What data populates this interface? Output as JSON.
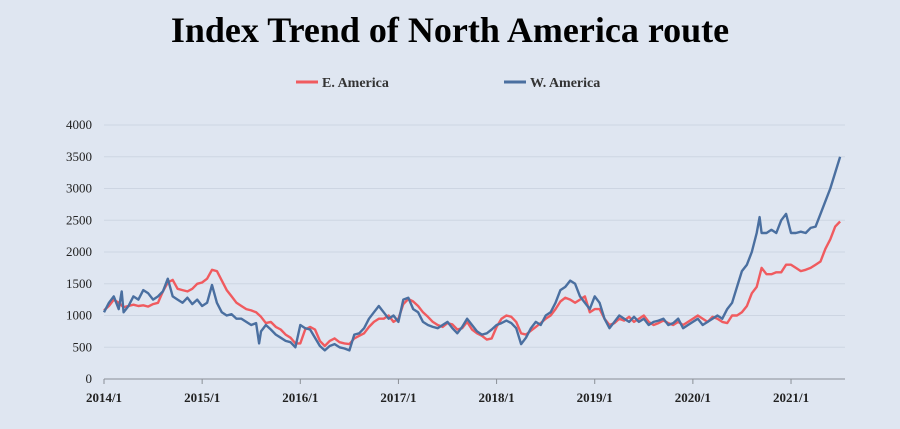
{
  "chart_data": {
    "type": "line",
    "title": "Index Trend of North America route",
    "xlabel": "",
    "ylabel": "",
    "ylim": [
      0,
      4000
    ],
    "yticks": [
      0,
      500,
      1000,
      1500,
      2000,
      2500,
      3000,
      3500,
      4000
    ],
    "xticks": [
      "2014/1",
      "2015/1",
      "2016/1",
      "2017/1",
      "2018/1",
      "2019/1",
      "2020/1",
      "2021/1"
    ],
    "xlim": [
      2014.0,
      2021.55
    ],
    "grid": true,
    "legend_position": "top-center",
    "series": [
      {
        "name": "E. America",
        "color": "#f05b5f",
        "points": [
          [
            2014.0,
            1080
          ],
          [
            2014.05,
            1150
          ],
          [
            2014.1,
            1250
          ],
          [
            2014.15,
            1200
          ],
          [
            2014.2,
            1130
          ],
          [
            2014.25,
            1150
          ],
          [
            2014.3,
            1170
          ],
          [
            2014.35,
            1150
          ],
          [
            2014.4,
            1160
          ],
          [
            2014.45,
            1140
          ],
          [
            2014.5,
            1180
          ],
          [
            2014.55,
            1200
          ],
          [
            2014.6,
            1380
          ],
          [
            2014.65,
            1520
          ],
          [
            2014.7,
            1560
          ],
          [
            2014.75,
            1420
          ],
          [
            2014.8,
            1400
          ],
          [
            2014.85,
            1380
          ],
          [
            2014.9,
            1420
          ],
          [
            2014.95,
            1500
          ],
          [
            2015.0,
            1520
          ],
          [
            2015.05,
            1580
          ],
          [
            2015.1,
            1720
          ],
          [
            2015.15,
            1700
          ],
          [
            2015.2,
            1550
          ],
          [
            2015.25,
            1400
          ],
          [
            2015.3,
            1300
          ],
          [
            2015.35,
            1200
          ],
          [
            2015.4,
            1150
          ],
          [
            2015.45,
            1100
          ],
          [
            2015.5,
            1080
          ],
          [
            2015.55,
            1050
          ],
          [
            2015.6,
            980
          ],
          [
            2015.65,
            880
          ],
          [
            2015.7,
            900
          ],
          [
            2015.75,
            820
          ],
          [
            2015.8,
            780
          ],
          [
            2015.85,
            700
          ],
          [
            2015.9,
            650
          ],
          [
            2015.95,
            560
          ],
          [
            2016.0,
            560
          ],
          [
            2016.05,
            780
          ],
          [
            2016.1,
            820
          ],
          [
            2016.15,
            780
          ],
          [
            2016.2,
            600
          ],
          [
            2016.25,
            520
          ],
          [
            2016.3,
            600
          ],
          [
            2016.35,
            640
          ],
          [
            2016.4,
            580
          ],
          [
            2016.45,
            560
          ],
          [
            2016.5,
            550
          ],
          [
            2016.55,
            640
          ],
          [
            2016.6,
            680
          ],
          [
            2016.65,
            720
          ],
          [
            2016.7,
            820
          ],
          [
            2016.75,
            900
          ],
          [
            2016.8,
            950
          ],
          [
            2016.85,
            950
          ],
          [
            2016.9,
            1000
          ],
          [
            2016.95,
            900
          ],
          [
            2017.0,
            950
          ],
          [
            2017.05,
            1180
          ],
          [
            2017.1,
            1260
          ],
          [
            2017.15,
            1220
          ],
          [
            2017.2,
            1150
          ],
          [
            2017.25,
            1050
          ],
          [
            2017.3,
            980
          ],
          [
            2017.35,
            900
          ],
          [
            2017.4,
            850
          ],
          [
            2017.45,
            820
          ],
          [
            2017.5,
            880
          ],
          [
            2017.55,
            860
          ],
          [
            2017.6,
            780
          ],
          [
            2017.65,
            800
          ],
          [
            2017.7,
            900
          ],
          [
            2017.75,
            780
          ],
          [
            2017.8,
            720
          ],
          [
            2017.85,
            680
          ],
          [
            2017.9,
            620
          ],
          [
            2017.95,
            640
          ],
          [
            2018.0,
            820
          ],
          [
            2018.05,
            950
          ],
          [
            2018.1,
            1000
          ],
          [
            2018.15,
            980
          ],
          [
            2018.2,
            900
          ],
          [
            2018.25,
            720
          ],
          [
            2018.3,
            700
          ],
          [
            2018.35,
            760
          ],
          [
            2018.4,
            820
          ],
          [
            2018.45,
            880
          ],
          [
            2018.5,
            950
          ],
          [
            2018.55,
            1000
          ],
          [
            2018.6,
            1100
          ],
          [
            2018.65,
            1220
          ],
          [
            2018.7,
            1280
          ],
          [
            2018.75,
            1250
          ],
          [
            2018.8,
            1200
          ],
          [
            2018.85,
            1250
          ],
          [
            2018.9,
            1300
          ],
          [
            2018.95,
            1050
          ],
          [
            2019.0,
            1100
          ],
          [
            2019.05,
            1100
          ],
          [
            2019.1,
            950
          ],
          [
            2019.15,
            850
          ],
          [
            2019.2,
            880
          ],
          [
            2019.25,
            950
          ],
          [
            2019.3,
            920
          ],
          [
            2019.35,
            980
          ],
          [
            2019.4,
            900
          ],
          [
            2019.45,
            950
          ],
          [
            2019.5,
            1000
          ],
          [
            2019.55,
            900
          ],
          [
            2019.6,
            850
          ],
          [
            2019.65,
            880
          ],
          [
            2019.7,
            920
          ],
          [
            2019.75,
            880
          ],
          [
            2019.8,
            850
          ],
          [
            2019.85,
            900
          ],
          [
            2019.9,
            850
          ],
          [
            2019.95,
            900
          ],
          [
            2020.0,
            950
          ],
          [
            2020.05,
            1000
          ],
          [
            2020.1,
            950
          ],
          [
            2020.15,
            900
          ],
          [
            2020.2,
            980
          ],
          [
            2020.25,
            950
          ],
          [
            2020.3,
            900
          ],
          [
            2020.35,
            880
          ],
          [
            2020.4,
            1000
          ],
          [
            2020.45,
            1000
          ],
          [
            2020.5,
            1050
          ],
          [
            2020.55,
            1150
          ],
          [
            2020.6,
            1350
          ],
          [
            2020.65,
            1450
          ],
          [
            2020.7,
            1750
          ],
          [
            2020.75,
            1650
          ],
          [
            2020.8,
            1650
          ],
          [
            2020.85,
            1680
          ],
          [
            2020.9,
            1680
          ],
          [
            2020.95,
            1800
          ],
          [
            2021.0,
            1800
          ],
          [
            2021.05,
            1750
          ],
          [
            2021.1,
            1700
          ],
          [
            2021.15,
            1720
          ],
          [
            2021.2,
            1750
          ],
          [
            2021.25,
            1800
          ],
          [
            2021.3,
            1850
          ],
          [
            2021.35,
            2050
          ],
          [
            2021.4,
            2200
          ],
          [
            2021.45,
            2400
          ],
          [
            2021.5,
            2480
          ]
        ]
      },
      {
        "name": "W. America",
        "color": "#4a6fa0",
        "points": [
          [
            2014.0,
            1050
          ],
          [
            2014.05,
            1200
          ],
          [
            2014.1,
            1300
          ],
          [
            2014.15,
            1100
          ],
          [
            2014.18,
            1380
          ],
          [
            2014.2,
            1050
          ],
          [
            2014.25,
            1150
          ],
          [
            2014.3,
            1300
          ],
          [
            2014.35,
            1250
          ],
          [
            2014.4,
            1400
          ],
          [
            2014.45,
            1350
          ],
          [
            2014.5,
            1250
          ],
          [
            2014.55,
            1300
          ],
          [
            2014.6,
            1380
          ],
          [
            2014.65,
            1580
          ],
          [
            2014.7,
            1300
          ],
          [
            2014.75,
            1250
          ],
          [
            2014.8,
            1200
          ],
          [
            2014.85,
            1280
          ],
          [
            2014.9,
            1180
          ],
          [
            2014.95,
            1250
          ],
          [
            2015.0,
            1150
          ],
          [
            2015.05,
            1200
          ],
          [
            2015.1,
            1480
          ],
          [
            2015.15,
            1200
          ],
          [
            2015.2,
            1050
          ],
          [
            2015.25,
            1000
          ],
          [
            2015.3,
            1020
          ],
          [
            2015.35,
            950
          ],
          [
            2015.4,
            950
          ],
          [
            2015.45,
            900
          ],
          [
            2015.5,
            850
          ],
          [
            2015.55,
            880
          ],
          [
            2015.58,
            560
          ],
          [
            2015.6,
            750
          ],
          [
            2015.65,
            850
          ],
          [
            2015.7,
            780
          ],
          [
            2015.75,
            700
          ],
          [
            2015.8,
            650
          ],
          [
            2015.85,
            600
          ],
          [
            2015.9,
            580
          ],
          [
            2015.95,
            500
          ],
          [
            2016.0,
            850
          ],
          [
            2016.05,
            800
          ],
          [
            2016.1,
            780
          ],
          [
            2016.15,
            650
          ],
          [
            2016.2,
            520
          ],
          [
            2016.25,
            450
          ],
          [
            2016.3,
            520
          ],
          [
            2016.35,
            550
          ],
          [
            2016.4,
            500
          ],
          [
            2016.45,
            480
          ],
          [
            2016.5,
            450
          ],
          [
            2016.55,
            700
          ],
          [
            2016.6,
            720
          ],
          [
            2016.65,
            800
          ],
          [
            2016.7,
            950
          ],
          [
            2016.75,
            1050
          ],
          [
            2016.8,
            1150
          ],
          [
            2016.85,
            1050
          ],
          [
            2016.9,
            950
          ],
          [
            2016.95,
            1000
          ],
          [
            2017.0,
            900
          ],
          [
            2017.05,
            1250
          ],
          [
            2017.1,
            1280
          ],
          [
            2017.15,
            1100
          ],
          [
            2017.2,
            1050
          ],
          [
            2017.25,
            900
          ],
          [
            2017.3,
            850
          ],
          [
            2017.35,
            820
          ],
          [
            2017.4,
            800
          ],
          [
            2017.45,
            850
          ],
          [
            2017.5,
            900
          ],
          [
            2017.55,
            800
          ],
          [
            2017.6,
            720
          ],
          [
            2017.65,
            820
          ],
          [
            2017.7,
            950
          ],
          [
            2017.75,
            850
          ],
          [
            2017.8,
            750
          ],
          [
            2017.85,
            700
          ],
          [
            2017.9,
            720
          ],
          [
            2017.95,
            780
          ],
          [
            2018.0,
            850
          ],
          [
            2018.05,
            880
          ],
          [
            2018.1,
            920
          ],
          [
            2018.15,
            880
          ],
          [
            2018.2,
            800
          ],
          [
            2018.25,
            550
          ],
          [
            2018.3,
            650
          ],
          [
            2018.35,
            800
          ],
          [
            2018.4,
            900
          ],
          [
            2018.45,
            850
          ],
          [
            2018.5,
            1000
          ],
          [
            2018.55,
            1050
          ],
          [
            2018.6,
            1200
          ],
          [
            2018.65,
            1400
          ],
          [
            2018.7,
            1450
          ],
          [
            2018.75,
            1550
          ],
          [
            2018.8,
            1500
          ],
          [
            2018.85,
            1300
          ],
          [
            2018.9,
            1200
          ],
          [
            2018.95,
            1100
          ],
          [
            2019.0,
            1300
          ],
          [
            2019.05,
            1200
          ],
          [
            2019.1,
            950
          ],
          [
            2019.15,
            800
          ],
          [
            2019.2,
            900
          ],
          [
            2019.25,
            1000
          ],
          [
            2019.3,
            950
          ],
          [
            2019.35,
            900
          ],
          [
            2019.4,
            980
          ],
          [
            2019.45,
            900
          ],
          [
            2019.5,
            950
          ],
          [
            2019.55,
            850
          ],
          [
            2019.6,
            900
          ],
          [
            2019.65,
            920
          ],
          [
            2019.7,
            950
          ],
          [
            2019.75,
            850
          ],
          [
            2019.8,
            880
          ],
          [
            2019.85,
            950
          ],
          [
            2019.9,
            800
          ],
          [
            2019.95,
            850
          ],
          [
            2020.0,
            900
          ],
          [
            2020.05,
            950
          ],
          [
            2020.1,
            850
          ],
          [
            2020.15,
            900
          ],
          [
            2020.2,
            950
          ],
          [
            2020.25,
            1000
          ],
          [
            2020.3,
            950
          ],
          [
            2020.35,
            1100
          ],
          [
            2020.4,
            1200
          ],
          [
            2020.45,
            1450
          ],
          [
            2020.5,
            1700
          ],
          [
            2020.55,
            1800
          ],
          [
            2020.6,
            2000
          ],
          [
            2020.65,
            2300
          ],
          [
            2020.68,
            2550
          ],
          [
            2020.7,
            2300
          ],
          [
            2020.75,
            2300
          ],
          [
            2020.8,
            2350
          ],
          [
            2020.85,
            2300
          ],
          [
            2020.9,
            2500
          ],
          [
            2020.95,
            2600
          ],
          [
            2021.0,
            2300
          ],
          [
            2021.05,
            2300
          ],
          [
            2021.1,
            2320
          ],
          [
            2021.15,
            2300
          ],
          [
            2021.2,
            2380
          ],
          [
            2021.25,
            2400
          ],
          [
            2021.3,
            2600
          ],
          [
            2021.35,
            2800
          ],
          [
            2021.4,
            3000
          ],
          [
            2021.45,
            3250
          ],
          [
            2021.5,
            3500
          ]
        ]
      }
    ]
  }
}
